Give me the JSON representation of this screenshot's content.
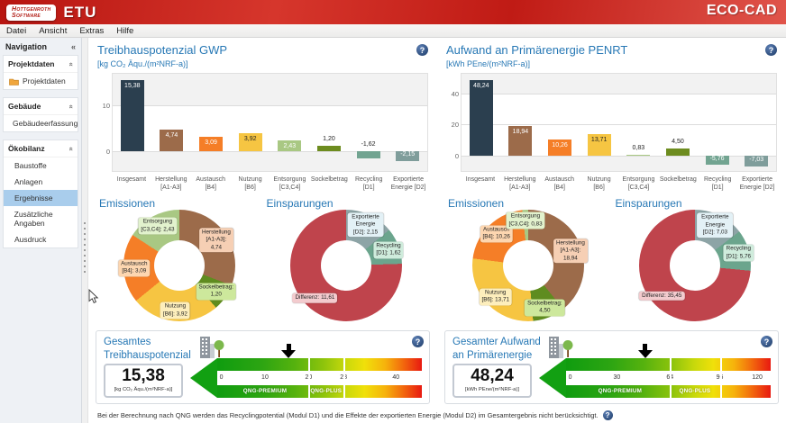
{
  "app": {
    "logo_line1": "Hottgenroth",
    "logo_line2": "Software",
    "logo_etu": "ETU",
    "product": "ECO-CAD",
    "accent_blue": "#2778b5",
    "brand_red": "#c01b15"
  },
  "menu": {
    "items": [
      "Datei",
      "Ansicht",
      "Extras",
      "Hilfe"
    ]
  },
  "sidebar": {
    "title": "Navigation",
    "collapse_icon": "«",
    "sections": [
      {
        "title": "Projektdaten",
        "items": [
          {
            "label": "Projektdaten"
          }
        ]
      },
      {
        "title": "Gebäude",
        "items": [
          {
            "label": "Gebäudeerfassung"
          }
        ]
      },
      {
        "title": "Ökobilanz",
        "items": [
          {
            "label": "Baustoffe"
          },
          {
            "label": "Anlagen"
          },
          {
            "label": "Ergebnisse",
            "selected": true
          },
          {
            "label": "Zusätzliche Angaben"
          },
          {
            "label": "Ausdruck"
          }
        ]
      }
    ]
  },
  "chart_data": [
    {
      "type": "bar",
      "title": "Treibhauspotenzial GWP",
      "subtitle": "[kg CO₂ Äqu./(m²NRF-a)]",
      "categories": [
        "Insgesamt",
        "Herstellung\n[A1-A3]",
        "Austausch\n[B4]",
        "Nutzung\n[B6]",
        "Entsorgung\n[C3,C4]",
        "Sockelbetrag",
        "Recycling\n[D1]",
        "Exportierte\nEnergie [D2]"
      ],
      "values": [
        15.38,
        4.74,
        3.09,
        3.92,
        2.43,
        1.2,
        -1.62,
        -2.15
      ],
      "labels": [
        "15,38",
        "4,74",
        "3,09",
        "3,92",
        "2,43",
        "1,20",
        "-1,62",
        "-2,15"
      ],
      "colors": [
        "#2b3f4f",
        "#9c6b4a",
        "#f57e27",
        "#f6c542",
        "#a9c883",
        "#6d8c1f",
        "#72a491",
        "#7f9d9b"
      ],
      "label_styles": [
        "in-light",
        "in-light",
        "in-light",
        "in-dark",
        "in-light",
        "above",
        "above",
        "in-light"
      ],
      "ymin": -4.3,
      "ymax": 16.8,
      "yticks": [
        0,
        10
      ],
      "top_tick": 10
    },
    {
      "type": "donut",
      "title": "Emissionen",
      "slices": [
        {
          "label": "Herstellung\n[A1-A3]: 4,74",
          "value": 4.74,
          "color": "#9c6b4a",
          "chip": "#f6cfb4"
        },
        {
          "label": "Sockelbetrag: 1,20",
          "value": 1.2,
          "color": "#5f8c1f",
          "chip": "#cde89c"
        },
        {
          "label": "Nutzung\n[B6]: 3,92",
          "value": 3.92,
          "color": "#f6c542",
          "chip": "#fdeebc"
        },
        {
          "label": "Austausch\n[B4]: 3,09",
          "value": 3.09,
          "color": "#f57e27",
          "chip": "#fdd6b0"
        },
        {
          "label": "Entsorgung\n[C3,C4]: 2,43",
          "value": 2.43,
          "color": "#a9c883",
          "chip": "#e2f2cd"
        }
      ]
    },
    {
      "type": "donut",
      "title": "Einsparungen",
      "slices": [
        {
          "label": "Exportierte\nEnergie [D2]: 2,15",
          "value": 2.15,
          "color": "#8da4a6",
          "chip": "#e3f1f6"
        },
        {
          "label": "Recycling\n[D1]: 1,62",
          "value": 1.62,
          "color": "#6ba58d",
          "chip": "#cfecdc"
        },
        {
          "label": "Differenz: 11,61",
          "value": 11.61,
          "color": "#bf444c",
          "chip": "#f3cbce"
        }
      ]
    },
    {
      "type": "scale",
      "title": "Gesamtes\nTreibhauspotenzial",
      "value": "15,38",
      "unit": "[kg CO₂ Äqu./(m²NRF-a)]",
      "min": 0,
      "max": 45,
      "ticks": [
        0,
        10,
        20,
        28,
        40
      ],
      "zones": [
        {
          "label": "QNG-PREMIUM",
          "to": 20
        },
        {
          "label": "QNG-PLUS",
          "to": 28
        }
      ],
      "marker": 15.38
    },
    {
      "type": "bar",
      "title": "Aufwand an Primärenergie PENRT",
      "subtitle": "[kWh PEne/(m²NRF-a)]",
      "categories": [
        "Insgesamt",
        "Herstellung\n[A1-A3]",
        "Austausch\n[B4]",
        "Nutzung\n[B6]",
        "Entsorgung\n[C3,C4]",
        "Sockelbetrag",
        "Recycling\n[D1]",
        "Exportierte\nEnergie [D2]"
      ],
      "values": [
        48.24,
        18.94,
        10.26,
        13.71,
        0.83,
        4.5,
        -5.76,
        -7.03
      ],
      "labels": [
        "48,24",
        "18,94",
        "10,26",
        "13,71",
        "0,83",
        "4,50",
        "-5,76",
        "-7,03"
      ],
      "colors": [
        "#2b3f4f",
        "#9c6b4a",
        "#f57e27",
        "#f6c542",
        "#a9c883",
        "#6d8c1f",
        "#72a491",
        "#7f9d9b"
      ],
      "label_styles": [
        "in-light",
        "in-light",
        "in-light",
        "in-dark",
        "above",
        "above",
        "in-light",
        "in-light"
      ],
      "ymin": -9.8,
      "ymax": 52.5,
      "yticks": [
        0,
        20,
        40
      ],
      "top_tick": 40
    },
    {
      "type": "donut",
      "title": "Emissionen",
      "slices": [
        {
          "label": "Herstellung\n[A1-A3]: 18,94",
          "value": 18.94,
          "color": "#9c6b4a",
          "chip": "#f6cfb4"
        },
        {
          "label": "Sockelbetrag: 4,50",
          "value": 4.5,
          "color": "#5f8c1f",
          "chip": "#cde89c"
        },
        {
          "label": "Nutzung\n[B6]: 13,71",
          "value": 13.71,
          "color": "#f6c542",
          "chip": "#fdeebc"
        },
        {
          "label": "Austausch\n[B4]: 10,26",
          "value": 10.26,
          "color": "#f57e27",
          "chip": "#fdd6b0"
        },
        {
          "label": "Entsorgung\n[C3,C4]: 0,83",
          "value": 0.83,
          "color": "#a9c883",
          "chip": "#e2f2cd"
        }
      ]
    },
    {
      "type": "donut",
      "title": "Einsparungen",
      "slices": [
        {
          "label": "Exportierte\nEnergie [D2]: 7,03",
          "value": 7.03,
          "color": "#8da4a6",
          "chip": "#e3f1f6"
        },
        {
          "label": "Recycling\n[D1]: 5,76",
          "value": 5.76,
          "color": "#6ba58d",
          "chip": "#cfecdc"
        },
        {
          "label": "Differenz: 35,45",
          "value": 35.45,
          "color": "#bf444c",
          "chip": "#f3cbce"
        }
      ]
    },
    {
      "type": "scale",
      "title": "Gesamter Aufwand\nan Primärenergie",
      "value": "48,24",
      "unit": "[kWh PEne/(m²NRF-a)]",
      "min": 0,
      "max": 126,
      "ticks": [
        0,
        30,
        64,
        96,
        120
      ],
      "zones": [
        {
          "label": "QNG-PREMIUM",
          "to": 64
        },
        {
          "label": "QNG-PLUS",
          "to": 96
        }
      ],
      "marker": 48.24
    }
  ],
  "help_glyph": "?",
  "footnote": "Bei der Berechnung nach QNG werden das Recyclingpotential (Modul D1) und die Effekte der exportierten Energie (Modul D2) im Gesamtergebnis nicht berücksichtigt."
}
